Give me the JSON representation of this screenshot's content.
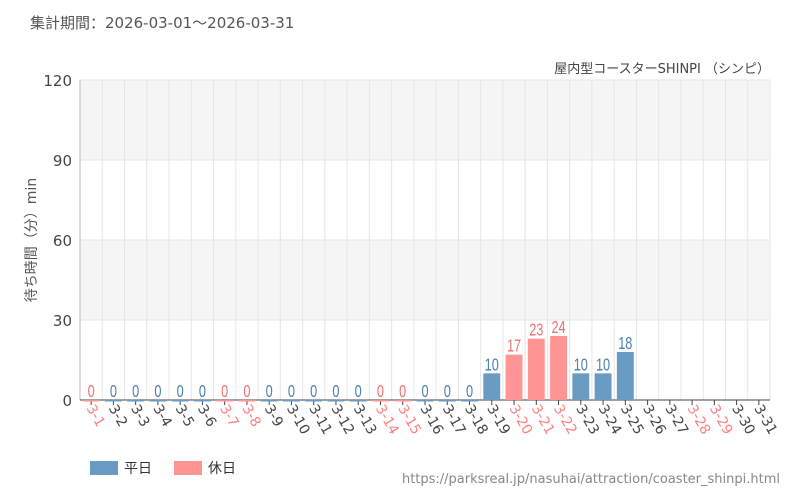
{
  "period_label": "集計期間：2026-03-01～2026-03-31",
  "attraction": "屋内型コースターSHINPI （シンピ）",
  "source_url": "https://parksreal.jp/nasuhai/attraction/coaster_shinpi.html",
  "chart_data": {
    "type": "bar",
    "ylabel": "待ち時間（分）min",
    "ylim": [
      0,
      120
    ],
    "yticks": [
      0,
      30,
      60,
      90,
      120
    ],
    "grid": true,
    "legend_placement": "bottom-left",
    "categories": [
      "3-1",
      "3-2",
      "3-3",
      "3-4",
      "3-5",
      "3-6",
      "3-7",
      "3-8",
      "3-9",
      "3-10",
      "3-11",
      "3-12",
      "3-13",
      "3-14",
      "3-15",
      "3-16",
      "3-17",
      "3-18",
      "3-19",
      "3-20",
      "3-21",
      "3-22",
      "3-23",
      "3-24",
      "3-25",
      "3-26",
      "3-27",
      "3-28",
      "3-29",
      "3-30",
      "3-31"
    ],
    "values": [
      0,
      0,
      0,
      0,
      0,
      0,
      0,
      0,
      0,
      0,
      0,
      0,
      0,
      0,
      0,
      0,
      0,
      0,
      10,
      17,
      23,
      24,
      10,
      10,
      18,
      null,
      null,
      null,
      null,
      null,
      null
    ],
    "day_type": [
      "holiday",
      "weekday",
      "weekday",
      "weekday",
      "weekday",
      "weekday",
      "holiday",
      "holiday",
      "weekday",
      "weekday",
      "weekday",
      "weekday",
      "weekday",
      "holiday",
      "holiday",
      "weekday",
      "weekday",
      "weekday",
      "weekday",
      "holiday",
      "holiday",
      "holiday",
      "weekday",
      "weekday",
      "weekday",
      "weekday",
      "weekday",
      "holiday",
      "holiday",
      "weekday",
      "weekday"
    ],
    "series": [
      {
        "key": "weekday",
        "name": "平日",
        "color": "#6a9bc3",
        "label_color": "#4a7fb0"
      },
      {
        "key": "holiday",
        "name": "休日",
        "color": "#ff9494",
        "label_color": "#f07070"
      }
    ]
  }
}
